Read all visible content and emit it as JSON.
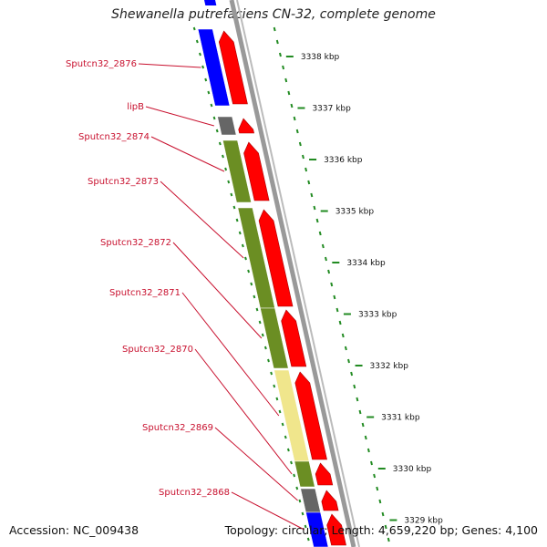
{
  "header": {
    "title": "Shewanella putrefaciens CN-32, complete genome"
  },
  "footer": {
    "accession": "Accession: NC_009438",
    "topology": "Topology: circular; Length: 4,659,220 bp; Genes: 4,100"
  },
  "scale_labels": [
    "3338 kbp",
    "3337 kbp",
    "3336 kbp",
    "3335 kbp",
    "3334 kbp",
    "3333 kbp",
    "3332 kbp",
    "3331 kbp",
    "3330 kbp",
    "3329 kbp"
  ],
  "genes": [
    {
      "name": "Sputcn32_2876",
      "color": "#0000ff"
    },
    {
      "name": "lipB",
      "color": "#666666"
    },
    {
      "name": "Sputcn32_2874",
      "color": "#6b8e23"
    },
    {
      "name": "Sputcn32_2873",
      "color": "#6b8e23"
    },
    {
      "name": "Sputcn32_2872",
      "color": "#6b8e23"
    },
    {
      "name": "Sputcn32_2871",
      "color": "#f0e68c"
    },
    {
      "name": "Sputcn32_2870",
      "color": "#6b8e23"
    },
    {
      "name": "Sputcn32_2869",
      "color": "#666666"
    },
    {
      "name": "Sputcn32_2868",
      "color": "#0000ff"
    }
  ],
  "colors": {
    "cds": "#ff0000",
    "label": "#c8102e",
    "tick": "#228b22"
  }
}
